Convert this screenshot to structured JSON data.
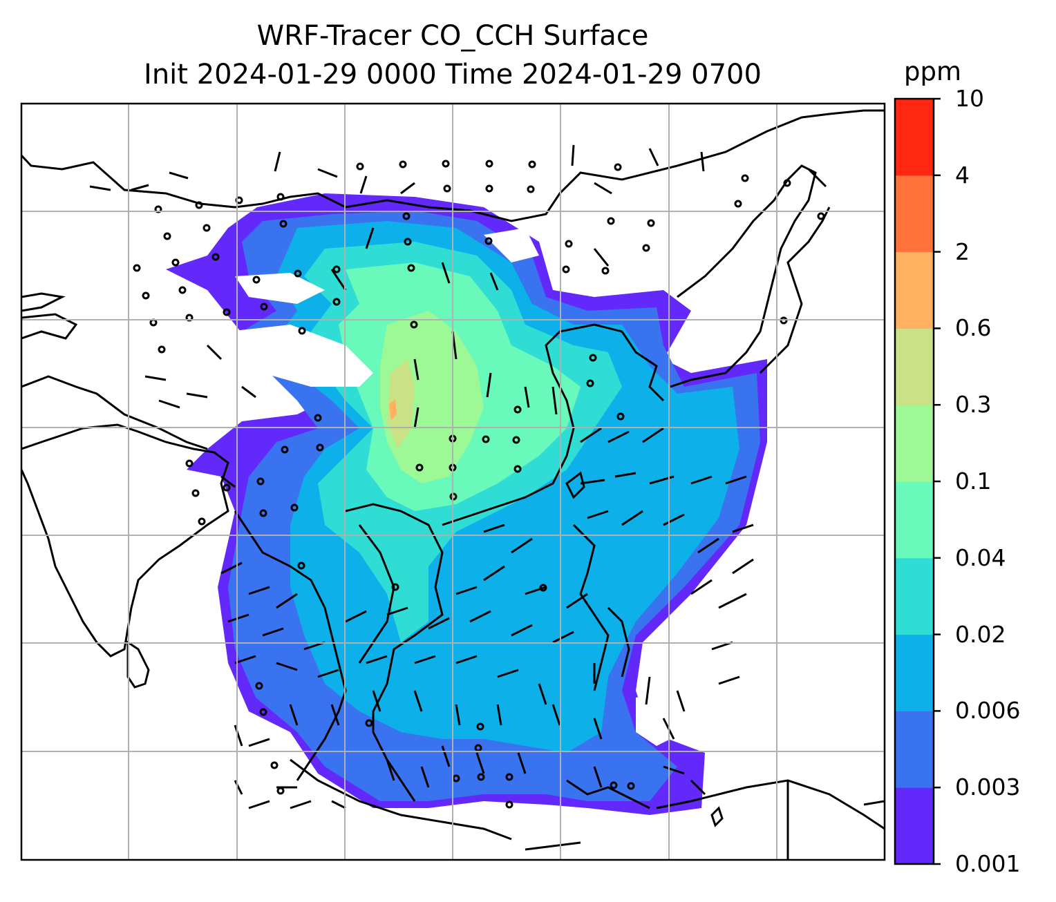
{
  "title": {
    "line1": "WRF-Tracer CO_CCH Surface",
    "line2": "Init 2024-01-29 0000 Time 2024-01-29 0700"
  },
  "colorbar": {
    "unit": "ppm",
    "levels": [
      "0.001",
      "0.003",
      "0.006",
      "0.02",
      "0.04",
      "0.1",
      "0.3",
      "0.6",
      "2",
      "4",
      "10"
    ],
    "colors": [
      "#6328fa",
      "#3a73ef",
      "#0db0e8",
      "#30ddd5",
      "#68f9bb",
      "#9cf996",
      "#cbe186",
      "#ffb061",
      "#ff733b",
      "#ff2712"
    ]
  },
  "map": {
    "field": "CO_CCH surface concentration with wind barbs",
    "gridlines": true,
    "coastlines": true,
    "background": "#ffffff"
  }
}
